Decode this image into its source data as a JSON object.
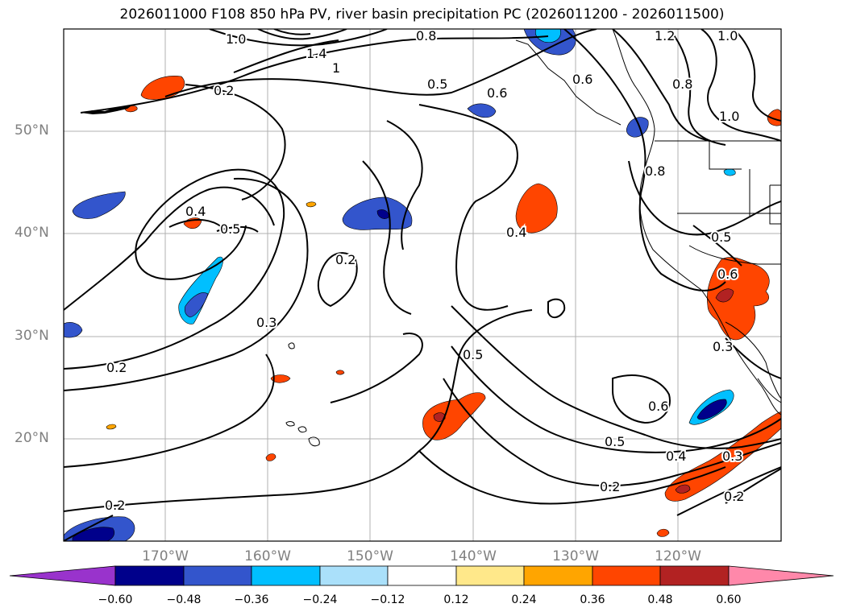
{
  "title": "2026011000 F108 850 hPa PV, river basin precipitation PC (2026011200 - 2026011500)",
  "map": {
    "lat_labels": [
      "50°N",
      "40°N",
      "30°N",
      "20°N"
    ],
    "lon_labels": [
      "170°W",
      "160°W",
      "150°W",
      "140°W",
      "130°W",
      "120°W"
    ],
    "contour_labels": [
      "1.0",
      "1.4",
      "0.8",
      "1.2",
      "1.0",
      "0.2",
      "1",
      "0.5",
      "0.6",
      "0.6",
      "0.8",
      "1.0",
      "0.8",
      "0.4",
      "0.5",
      "0.2",
      "0.4",
      "0.5",
      "0.6",
      "0.3",
      "0.2",
      "0.5",
      "0.3",
      "0.6",
      "0.5",
      "0.4",
      "0.3",
      "0.2",
      "0.2",
      "0.2"
    ]
  },
  "colorbar": {
    "ticks": [
      "−0.60",
      "−0.48",
      "−0.36",
      "−0.24",
      "−0.12",
      "0.12",
      "0.24",
      "0.36",
      "0.48",
      "0.60"
    ],
    "colors": [
      "#9933cc",
      "#00008b",
      "#3355cc",
      "#00bfff",
      "#aae0fa",
      "#ffffff",
      "#ffe88a",
      "#ffa500",
      "#ff4500",
      "#b22222",
      "#ff88aa"
    ]
  }
}
